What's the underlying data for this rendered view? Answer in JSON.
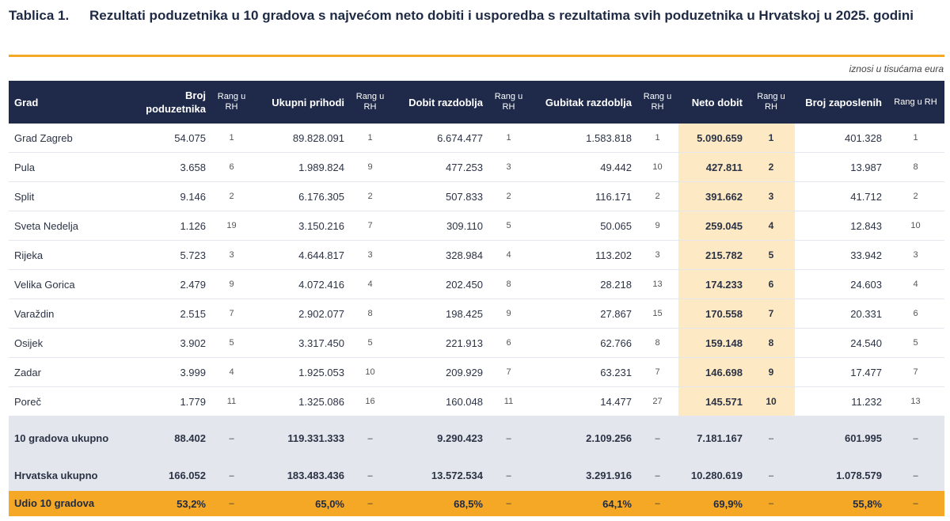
{
  "title": {
    "label": "Tablica 1.",
    "text": "Rezultati poduzetnika u 10 gradova s najvećom neto dobiti i usporedba s rezultatima svih poduzetnika u Hrvatskoj u 2025. godini"
  },
  "note": "iznosi u tisućama eura",
  "headers": {
    "grad": "Grad",
    "broj": "Broj poduzetnika",
    "rang": "Rang u RH",
    "prihodi": "Ukupni prihodi",
    "dobit": "Dobit razdoblja",
    "gubitak": "Gubitak razdoblja",
    "neto": "Neto dobit",
    "zaposleni": "Broj zaposlenih"
  },
  "rows": [
    {
      "grad": "Grad Zagreb",
      "broj": "54.075",
      "broj_r": "1",
      "prihodi": "89.828.091",
      "prihodi_r": "1",
      "dobit": "6.674.477",
      "dobit_r": "1",
      "gubitak": "1.583.818",
      "gubitak_r": "1",
      "neto": "5.090.659",
      "neto_r": "1",
      "zap": "401.328",
      "zap_r": "1"
    },
    {
      "grad": "Pula",
      "broj": "3.658",
      "broj_r": "6",
      "prihodi": "1.989.824",
      "prihodi_r": "9",
      "dobit": "477.253",
      "dobit_r": "3",
      "gubitak": "49.442",
      "gubitak_r": "10",
      "neto": "427.811",
      "neto_r": "2",
      "zap": "13.987",
      "zap_r": "8"
    },
    {
      "grad": "Split",
      "broj": "9.146",
      "broj_r": "2",
      "prihodi": "6.176.305",
      "prihodi_r": "2",
      "dobit": "507.833",
      "dobit_r": "2",
      "gubitak": "116.171",
      "gubitak_r": "2",
      "neto": "391.662",
      "neto_r": "3",
      "zap": "41.712",
      "zap_r": "2"
    },
    {
      "grad": "Sveta Nedelja",
      "broj": "1.126",
      "broj_r": "19",
      "prihodi": "3.150.216",
      "prihodi_r": "7",
      "dobit": "309.110",
      "dobit_r": "5",
      "gubitak": "50.065",
      "gubitak_r": "9",
      "neto": "259.045",
      "neto_r": "4",
      "zap": "12.843",
      "zap_r": "10"
    },
    {
      "grad": "Rijeka",
      "broj": "5.723",
      "broj_r": "3",
      "prihodi": "4.644.817",
      "prihodi_r": "3",
      "dobit": "328.984",
      "dobit_r": "4",
      "gubitak": "113.202",
      "gubitak_r": "3",
      "neto": "215.782",
      "neto_r": "5",
      "zap": "33.942",
      "zap_r": "3"
    },
    {
      "grad": "Velika Gorica",
      "broj": "2.479",
      "broj_r": "9",
      "prihodi": "4.072.416",
      "prihodi_r": "4",
      "dobit": "202.450",
      "dobit_r": "8",
      "gubitak": "28.218",
      "gubitak_r": "13",
      "neto": "174.233",
      "neto_r": "6",
      "zap": "24.603",
      "zap_r": "4"
    },
    {
      "grad": "Varaždin",
      "broj": "2.515",
      "broj_r": "7",
      "prihodi": "2.902.077",
      "prihodi_r": "8",
      "dobit": "198.425",
      "dobit_r": "9",
      "gubitak": "27.867",
      "gubitak_r": "15",
      "neto": "170.558",
      "neto_r": "7",
      "zap": "20.331",
      "zap_r": "6"
    },
    {
      "grad": "Osijek",
      "broj": "3.902",
      "broj_r": "5",
      "prihodi": "3.317.450",
      "prihodi_r": "5",
      "dobit": "221.913",
      "dobit_r": "6",
      "gubitak": "62.766",
      "gubitak_r": "8",
      "neto": "159.148",
      "neto_r": "8",
      "zap": "24.540",
      "zap_r": "5"
    },
    {
      "grad": "Zadar",
      "broj": "3.999",
      "broj_r": "4",
      "prihodi": "1.925.053",
      "prihodi_r": "10",
      "dobit": "209.929",
      "dobit_r": "7",
      "gubitak": "63.231",
      "gubitak_r": "7",
      "neto": "146.698",
      "neto_r": "9",
      "zap": "17.477",
      "zap_r": "7"
    },
    {
      "grad": "Poreč",
      "broj": "1.779",
      "broj_r": "11",
      "prihodi": "1.325.086",
      "prihodi_r": "16",
      "dobit": "160.048",
      "dobit_r": "11",
      "gubitak": "14.477",
      "gubitak_r": "27",
      "neto": "145.571",
      "neto_r": "10",
      "zap": "11.232",
      "zap_r": "13"
    }
  ],
  "summary": [
    {
      "grad": "10 gradova ukupno",
      "broj": "88.402",
      "prihodi": "119.331.333",
      "dobit": "9.290.423",
      "gubitak": "2.109.256",
      "neto": "7.181.167",
      "zap": "601.995",
      "dash": "–"
    },
    {
      "grad": "Hrvatska ukupno",
      "broj": "166.052",
      "prihodi": "183.483.436",
      "dobit": "13.572.534",
      "gubitak": "3.291.916",
      "neto": "10.280.619",
      "zap": "1.078.579",
      "dash": "–"
    },
    {
      "grad": "Udio 10 gradova",
      "broj": "53,2%",
      "prihodi": "65,0%",
      "dobit": "68,5%",
      "gubitak": "64,1%",
      "neto": "69,9%",
      "zap": "55,8%",
      "dash": "–"
    }
  ],
  "colors": {
    "header_bg": "#1f2a4a",
    "accent": "#f4a825",
    "highlight": "#fde9c4",
    "summary_bg": "#e3e6ed"
  }
}
